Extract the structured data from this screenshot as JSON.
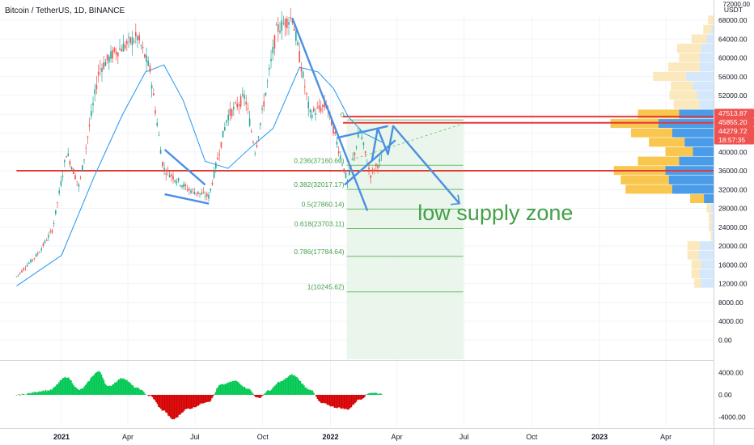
{
  "header": {
    "symbol_title": "Bitcoin / TetherUS, 1D, BINANCE",
    "price_unit": "USDT",
    "top_tick_cut": "72000.00"
  },
  "chart_data": {
    "type": "line",
    "title": "Bitcoin / TetherUS, 1D, BINANCE",
    "price_axis": {
      "unit": "USDT",
      "ticks": [
        0,
        4000,
        8000,
        12000,
        16000,
        20000,
        24000,
        28000,
        32000,
        36000,
        40000,
        44000,
        48000,
        52000,
        56000,
        60000,
        64000,
        68000
      ],
      "tick_labels": [
        "0.00",
        "4000.00",
        "8000.00",
        "12000.00",
        "16000.00",
        "20000.00",
        "24000.00",
        "28000.00",
        "32000.00",
        "36000.00",
        "40000.00",
        "",
        "",
        "52000.00",
        "56000.00",
        "60000.00",
        "64000.00",
        "68000.00"
      ]
    },
    "time_axis": {
      "ticks": [
        "2021",
        "Apr",
        "Jul",
        "Oct",
        "2022",
        "Apr",
        "Jul",
        "Oct",
        "2023",
        "Apr"
      ],
      "bold_ticks": [
        "2021",
        "2022",
        "2023"
      ]
    },
    "price_labels": [
      {
        "value": 47513.87,
        "text": "47513.87",
        "color": "#ef5350"
      },
      {
        "value": 45855.2,
        "text": "45855.20",
        "color": "#ef5350"
      },
      {
        "value": 44279.72,
        "text": "44279.72",
        "color": "#ef5350",
        "sub": "18:57:35"
      }
    ],
    "price_series": {
      "name": "BTCUSDT daily close",
      "x": [
        "2020-11-01",
        "2020-12-01",
        "2020-12-20",
        "2021-01-08",
        "2021-01-25",
        "2021-02-21",
        "2021-03-13",
        "2021-04-14",
        "2021-05-01",
        "2021-05-19",
        "2021-06-22",
        "2021-07-20",
        "2021-08-14",
        "2021-09-07",
        "2021-09-21",
        "2021-10-20",
        "2021-11-10",
        "2021-12-04",
        "2021-12-27",
        "2022-01-24",
        "2022-02-10",
        "2022-02-24",
        "2022-03-13"
      ],
      "y": [
        13500,
        18500,
        23500,
        40000,
        32500,
        57500,
        61000,
        64500,
        57500,
        36500,
        32000,
        30500,
        47500,
        51800,
        40000,
        66000,
        68800,
        48000,
        50000,
        33500,
        44500,
        35000,
        39000
      ],
      "color": "#26a69a"
    },
    "moving_average": {
      "x": [
        "2020-11-01",
        "2021-01-01",
        "2021-02-15",
        "2021-03-25",
        "2021-04-25",
        "2021-05-20",
        "2021-06-15",
        "2021-07-15",
        "2021-08-15",
        "2021-09-15",
        "2021-10-15",
        "2021-11-20",
        "2021-12-15",
        "2022-01-05",
        "2022-01-25",
        "2022-02-15",
        "2022-03-13"
      ],
      "y": [
        11500,
        18000,
        35000,
        48000,
        57000,
        58500,
        51000,
        38000,
        36500,
        41000,
        45000,
        58000,
        57000,
        53500,
        47500,
        44000,
        42000
      ],
      "color": "#2196f3"
    },
    "horizontal_lines": [
      {
        "value": 47513.87,
        "color": "#e53935",
        "from": "2022-01-18"
      },
      {
        "value": 46200,
        "color": "#e53935",
        "from": "2022-01-18"
      },
      {
        "value": 36000,
        "color": "#e53935",
        "from": "2020-11-01"
      }
    ],
    "fibonacci": [
      {
        "ratio": "0",
        "value": 46800,
        "label": "0"
      },
      {
        "ratio": "0.236",
        "value": 37160.6,
        "label": "0.236(37160.60)"
      },
      {
        "ratio": "0.382",
        "value": 32017.17,
        "label": "0.382(32017.17)"
      },
      {
        "ratio": "0.5",
        "value": 27860.14,
        "label": "0.5(27860.14)"
      },
      {
        "ratio": "0.618",
        "value": 23703.11,
        "label": "0.618(23703.11)"
      },
      {
        "ratio": "0.786",
        "value": 17784.64,
        "label": "0.786(17784.64)"
      },
      {
        "ratio": "1",
        "value": 10245.62,
        "label": "1(10245.62)"
      }
    ],
    "fib_range": {
      "from": "2022-01-23",
      "to": "2022-06-30"
    },
    "projection_box": {
      "from": "2022-01-23",
      "to": "2022-06-30",
      "top": 46000,
      "bottom": -4000
    },
    "trend_lines": [
      {
        "points": [
          [
            "2021-05-21",
            40500
          ],
          [
            "2021-07-15",
            33000
          ]
        ]
      },
      {
        "points": [
          [
            "2021-05-21",
            31000
          ],
          [
            "2021-07-20",
            29000
          ]
        ]
      },
      {
        "points": [
          [
            "2021-11-10",
            68500
          ],
          [
            "2022-02-20",
            27500
          ]
        ]
      },
      {
        "points": [
          [
            "2022-01-10",
            43000
          ],
          [
            "2022-03-20",
            45500
          ]
        ]
      },
      {
        "points": [
          [
            "2022-01-20",
            33000
          ],
          [
            "2022-03-30",
            42500
          ]
        ]
      },
      {
        "points": [
          [
            "2022-02-26",
            38000
          ],
          [
            "2022-03-06",
            45000
          ],
          [
            "2022-03-20",
            39500
          ],
          [
            "2022-03-27",
            45500
          ],
          [
            "2022-06-25",
            29000
          ]
        ]
      }
    ],
    "annotation": {
      "text": "low supply zone",
      "color": "#43a047",
      "at": [
        "2022-05-30",
        25500
      ]
    },
    "volume_profile": [
      {
        "value": 68000,
        "buy": 8,
        "sell": 0
      },
      {
        "value": 66000,
        "buy": 12,
        "sell": 3
      },
      {
        "value": 64000,
        "buy": 22,
        "sell": 10
      },
      {
        "value": 62000,
        "buy": 35,
        "sell": 18
      },
      {
        "value": 60000,
        "buy": 30,
        "sell": 20
      },
      {
        "value": 58000,
        "buy": 46,
        "sell": 20
      },
      {
        "value": 56000,
        "buy": 48,
        "sell": 40
      },
      {
        "value": 54000,
        "buy": 32,
        "sell": 30
      },
      {
        "value": 52000,
        "buy": 40,
        "sell": 24
      },
      {
        "value": 50000,
        "buy": 38,
        "sell": 20
      },
      {
        "value": 48000,
        "buy": 60,
        "sell": 50
      },
      {
        "value": 46000,
        "buy": 70,
        "sell": 80
      },
      {
        "value": 44000,
        "buy": 60,
        "sell": 60
      },
      {
        "value": 42000,
        "buy": 52,
        "sell": 42
      },
      {
        "value": 40000,
        "buy": 40,
        "sell": 30
      },
      {
        "value": 38000,
        "buy": 60,
        "sell": 50
      },
      {
        "value": 36000,
        "buy": 75,
        "sell": 70
      },
      {
        "value": 34000,
        "buy": 70,
        "sell": 65
      },
      {
        "value": 32000,
        "buy": 68,
        "sell": 60
      },
      {
        "value": 30000,
        "buy": 20,
        "sell": 14
      },
      {
        "value": 28000,
        "buy": 6,
        "sell": 4
      },
      {
        "value": 26000,
        "buy": 4,
        "sell": 3
      },
      {
        "value": 24000,
        "buy": 4,
        "sell": 3
      },
      {
        "value": 22000,
        "buy": 2,
        "sell": 2
      },
      {
        "value": 20000,
        "buy": 18,
        "sell": 20
      },
      {
        "value": 18000,
        "buy": 16,
        "sell": 22
      },
      {
        "value": 16000,
        "buy": 14,
        "sell": 18
      },
      {
        "value": 14000,
        "buy": 12,
        "sell": 20
      },
      {
        "value": 12000,
        "buy": 10,
        "sell": 18
      }
    ],
    "oscillator": {
      "ticks": [
        4000,
        0,
        -4000
      ],
      "tick_labels": [
        "4000.00",
        "0.00",
        "-4000.00"
      ],
      "x": [
        "2020-11-01",
        "2020-12-15",
        "2021-01-08",
        "2021-01-25",
        "2021-02-21",
        "2021-03-05",
        "2021-03-25",
        "2021-04-14",
        "2021-05-01",
        "2021-05-19",
        "2021-06-01",
        "2021-06-22",
        "2021-07-20",
        "2021-08-05",
        "2021-08-25",
        "2021-09-10",
        "2021-09-25",
        "2021-10-10",
        "2021-10-25",
        "2021-11-10",
        "2021-12-04",
        "2021-12-20",
        "2022-01-10",
        "2022-01-24",
        "2022-02-10",
        "2022-02-24",
        "2022-03-13"
      ],
      "y": [
        0,
        800,
        3200,
        900,
        4200,
        1500,
        3000,
        1200,
        -200,
        -2800,
        -4400,
        -2500,
        -1200,
        1800,
        2500,
        1200,
        -600,
        800,
        2400,
        3600,
        1000,
        -1500,
        -2300,
        -2600,
        -800,
        400,
        200
      ],
      "positive_color": "#00c853",
      "negative_color": "#d50000"
    }
  }
}
